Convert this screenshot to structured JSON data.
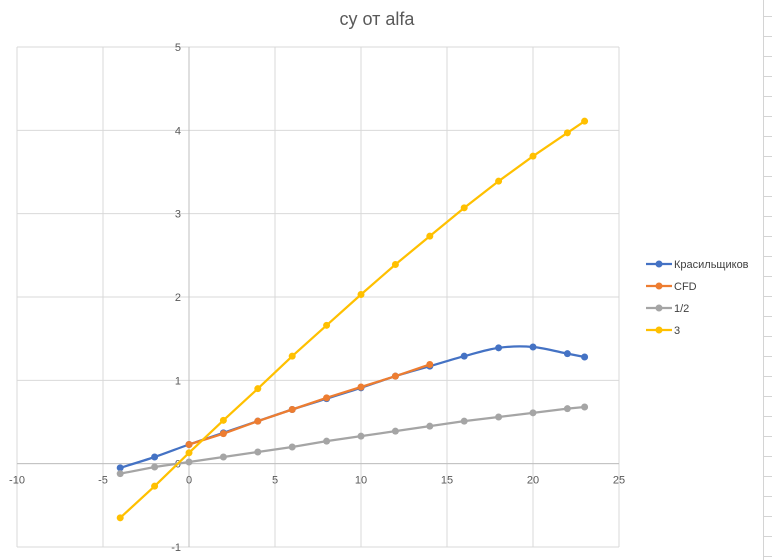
{
  "chart_data": {
    "type": "scatter",
    "title": "cy от alfa",
    "xlabel": "",
    "ylabel": "",
    "xlim": [
      -10,
      25
    ],
    "ylim": [
      -1,
      5
    ],
    "xticks": [
      -10,
      -5,
      0,
      5,
      10,
      15,
      20,
      25
    ],
    "yticks": [
      -1,
      0,
      1,
      2,
      3,
      4,
      5
    ],
    "grid": true,
    "legend_position": "right",
    "series": [
      {
        "name": "Красильщиков",
        "color": "#4472C4",
        "smooth": true,
        "x": [
          -4,
          -2,
          0,
          2,
          4,
          6,
          8,
          10,
          12,
          14,
          16,
          18,
          20,
          22,
          23
        ],
        "y": [
          -0.05,
          0.08,
          0.23,
          0.37,
          0.51,
          0.65,
          0.78,
          0.91,
          1.05,
          1.17,
          1.29,
          1.39,
          1.4,
          1.32,
          1.28
        ]
      },
      {
        "name": "CFD",
        "color": "#ED7D31",
        "smooth": false,
        "x": [
          0,
          2,
          4,
          6,
          8,
          10,
          12,
          14
        ],
        "y": [
          0.23,
          0.36,
          0.51,
          0.65,
          0.79,
          0.92,
          1.05,
          1.19
        ]
      },
      {
        "name": "1/2",
        "color": "#A5A5A5",
        "smooth": false,
        "x": [
          -4,
          -2,
          0,
          2,
          4,
          6,
          8,
          10,
          12,
          14,
          16,
          18,
          20,
          22,
          23
        ],
        "y": [
          -0.12,
          -0.04,
          0.02,
          0.08,
          0.14,
          0.2,
          0.27,
          0.33,
          0.39,
          0.45,
          0.51,
          0.56,
          0.61,
          0.66,
          0.68
        ]
      },
      {
        "name": "3",
        "color": "#FFC000",
        "smooth": false,
        "x": [
          -4,
          -2,
          0,
          2,
          4,
          6,
          8,
          10,
          12,
          14,
          16,
          18,
          20,
          22,
          23
        ],
        "y": [
          -0.65,
          -0.27,
          0.13,
          0.52,
          0.9,
          1.29,
          1.66,
          2.03,
          2.39,
          2.73,
          3.07,
          3.39,
          3.69,
          3.97,
          4.11
        ]
      }
    ]
  }
}
